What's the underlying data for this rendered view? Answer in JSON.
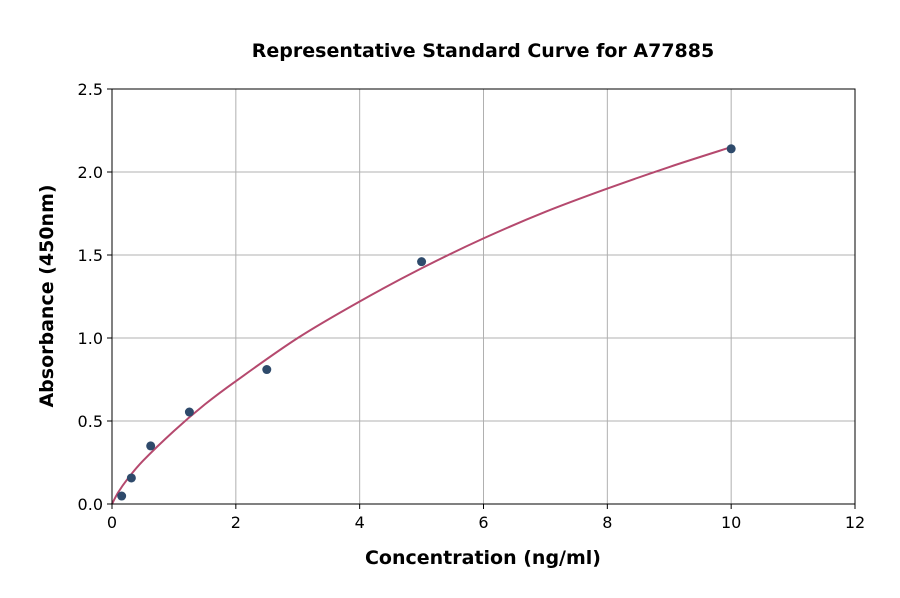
{
  "chart_data": {
    "type": "scatter",
    "title": "Representative Standard Curve for A77885",
    "xlabel": "Concentration (ng/ml)",
    "ylabel": "Absorbance (450nm)",
    "xlim": [
      0,
      12
    ],
    "ylim": [
      0,
      2.5
    ],
    "xticks": [
      0,
      2,
      4,
      6,
      8,
      10,
      12
    ],
    "yticks": [
      0.0,
      0.5,
      1.0,
      1.5,
      2.0,
      2.5
    ],
    "xtick_labels": [
      "0",
      "2",
      "4",
      "6",
      "8",
      "10",
      "12"
    ],
    "ytick_labels": [
      "0.0",
      "0.5",
      "1.0",
      "1.5",
      "2.0",
      "2.5"
    ],
    "grid": true,
    "points": {
      "x": [
        0.156,
        0.313,
        0.625,
        1.25,
        2.5,
        5,
        10
      ],
      "y": [
        0.048,
        0.157,
        0.35,
        0.554,
        0.81,
        1.46,
        2.14
      ],
      "color": "#2e4a6b"
    },
    "fit_curve": {
      "x": [
        0,
        0.1,
        0.25,
        0.5,
        1,
        1.5,
        2,
        3,
        4,
        5,
        6,
        7,
        8,
        9,
        10
      ],
      "y": [
        0,
        0.07,
        0.15,
        0.26,
        0.44,
        0.6,
        0.74,
        1.0,
        1.22,
        1.42,
        1.6,
        1.76,
        1.9,
        2.03,
        2.15
      ],
      "color": "#b5496e"
    }
  }
}
